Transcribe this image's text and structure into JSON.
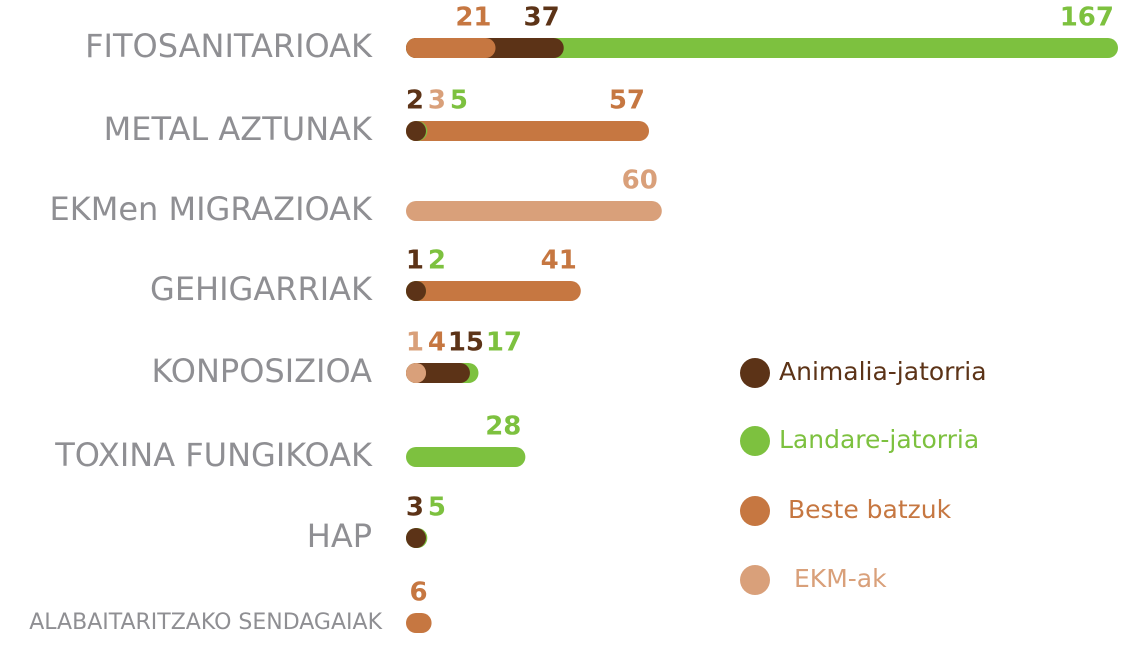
{
  "chart_data": {
    "type": "overlap-bar",
    "categories": [
      "FITOSANITARIOAK",
      "METAL AZTUNAK",
      "EKMen MIGRAZIOAK",
      "GEHIGARRIAK",
      "KONPOSIZIOA",
      "TOXINA FUNGIKOAK",
      "HAP",
      "ALABAITARITZAKO SENDAGAIAK"
    ],
    "series": [
      {
        "name": "Animalia-jatorria",
        "color": "#5c3317",
        "values": [
          37,
          2,
          null,
          1,
          15,
          null,
          3,
          null
        ]
      },
      {
        "name": "Landare-jatorria",
        "color": "#7dc13f",
        "values": [
          167,
          5,
          null,
          2,
          17,
          28,
          5,
          null
        ]
      },
      {
        "name": "Beste batzuk",
        "color": "#c67741",
        "values": [
          21,
          57,
          null,
          41,
          4,
          null,
          null,
          6
        ]
      },
      {
        "name": "EKM-ak",
        "color": "#d9a07a",
        "values": [
          null,
          3,
          60,
          null,
          1,
          null,
          null,
          null
        ]
      }
    ],
    "legend": "right"
  }
}
